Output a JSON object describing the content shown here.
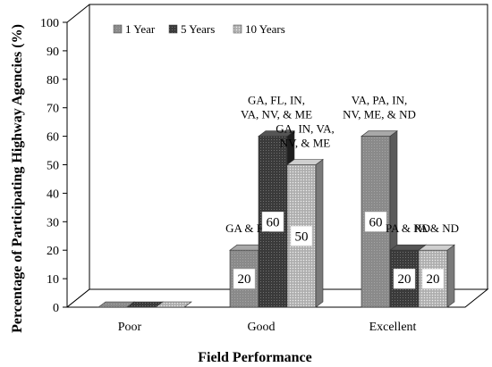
{
  "chart_data": {
    "type": "bar",
    "xlabel": "Field Performance",
    "ylabel": "Percentage of Participating Highway Agencies (%)",
    "ylim": [
      0,
      100
    ],
    "yticks": [
      0,
      10,
      20,
      30,
      40,
      50,
      60,
      70,
      80,
      90,
      100
    ],
    "categories": [
      "Poor",
      "Good",
      "Excellent"
    ],
    "legend_position": "top-left",
    "grid": false,
    "series": [
      {
        "name": "1 Year",
        "values": [
          0,
          20,
          60
        ],
        "color": "#8a8a8a",
        "labels": [
          "",
          "20",
          "60"
        ],
        "annotations": [
          "",
          "GA & FL",
          "VA, PA, IN, NV, ME, & ND"
        ]
      },
      {
        "name": "5 Years",
        "values": [
          0,
          60,
          20
        ],
        "color": "#3a3a3a",
        "labels": [
          "",
          "60",
          "20"
        ],
        "annotations": [
          "",
          "GA, FL, IN, VA, NV, & ME",
          "PA & ND"
        ]
      },
      {
        "name": "10 Years",
        "values": [
          0,
          50,
          20
        ],
        "color": "#b5b5b5",
        "labels": [
          "",
          "50",
          "20"
        ],
        "annotations": [
          "",
          "GA, IN, VA, NV, & ME",
          "PA & ND"
        ]
      }
    ]
  }
}
